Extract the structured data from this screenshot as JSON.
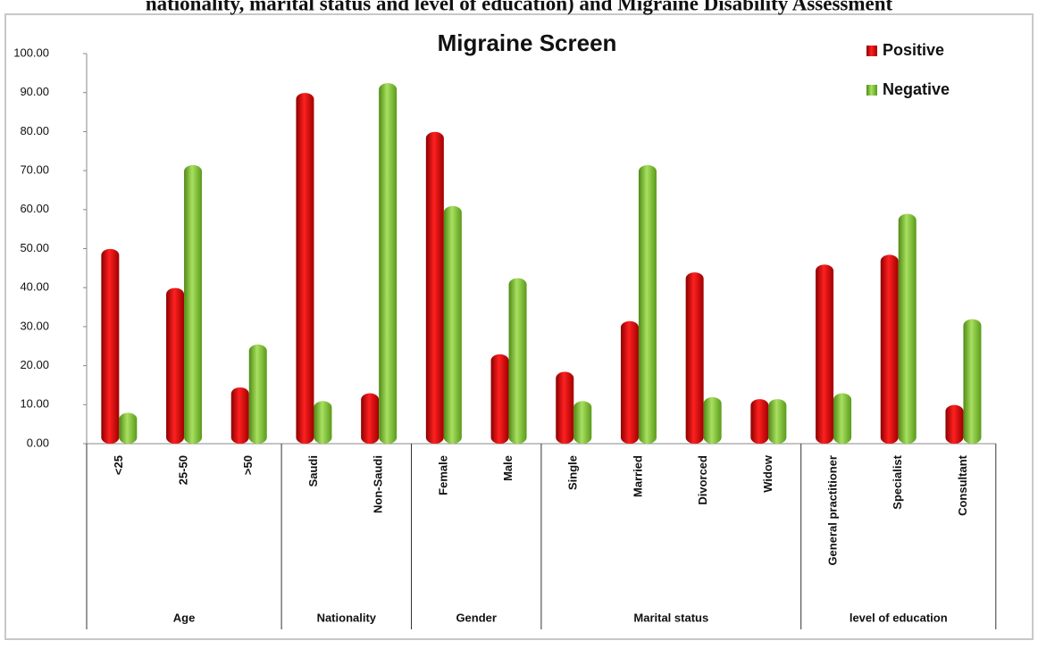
{
  "caption": "nationality, marital status and level of education) and Migraine Disability Assessment",
  "chart_data": {
    "type": "bar",
    "title": "Migraine Screen",
    "groups": [
      {
        "name": "Age",
        "categories": [
          "<25",
          "25-50",
          ">50"
        ]
      },
      {
        "name": "Nationality",
        "categories": [
          "Saudi",
          "Non-Saudi"
        ]
      },
      {
        "name": "Gender",
        "categories": [
          "Female",
          "Male"
        ]
      },
      {
        "name": "Marital status",
        "categories": [
          "Single",
          "Married",
          "Divorced",
          "Widow"
        ]
      },
      {
        "name": "level of education",
        "categories": [
          "General practitioner",
          "Specialist",
          "Consultant"
        ]
      }
    ],
    "series": [
      {
        "name": "Positive",
        "color": "#e00000",
        "values": [
          49,
          39,
          13.5,
          89,
          12,
          79,
          22,
          17.5,
          30.5,
          43,
          10.5,
          45,
          47.5,
          9
        ]
      },
      {
        "name": "Negative",
        "color": "#7dc42e",
        "values": [
          7,
          70.5,
          24.5,
          10,
          91.5,
          60,
          41.5,
          10,
          70.5,
          11,
          10.5,
          12,
          58,
          31
        ]
      }
    ],
    "ylim": [
      0,
      100
    ],
    "yticks": [
      {
        "value": 0,
        "label": "0.00"
      },
      {
        "value": 10,
        "label": "10.00"
      },
      {
        "value": 20,
        "label": "20.00"
      },
      {
        "value": 30,
        "label": "30.00"
      },
      {
        "value": 40,
        "label": "40.00"
      },
      {
        "value": 50,
        "label": "50.00"
      },
      {
        "value": 60,
        "label": "60.00"
      },
      {
        "value": 70,
        "label": "70.00"
      },
      {
        "value": 80,
        "label": "80.00"
      },
      {
        "value": 90,
        "label": "90.00"
      },
      {
        "value": 100,
        "label": "100.00"
      }
    ],
    "legend": "top-right"
  }
}
